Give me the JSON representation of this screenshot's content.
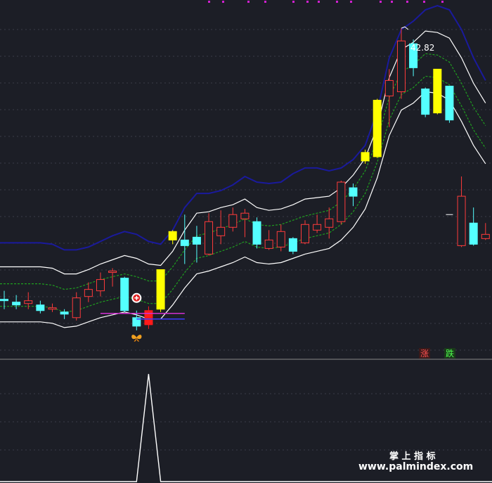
{
  "chart_data": [
    {
      "type": "candlestick",
      "title": "",
      "ylim": [
        20.0,
        44.5
      ],
      "grid": true,
      "max_label": "42.82",
      "badges": {
        "up": "涨",
        "down": "跌"
      },
      "candles": [
        {
          "o": 23.7,
          "c": 23.7,
          "h": 24.3,
          "l": 23.0,
          "color": "cyan"
        },
        {
          "o": 23.5,
          "c": 23.3,
          "h": 24.0,
          "l": 23.0,
          "color": "cyan"
        },
        {
          "o": 23.4,
          "c": 23.6,
          "h": 24.2,
          "l": 23.0,
          "color": "red"
        },
        {
          "o": 23.3,
          "c": 22.9,
          "h": 23.6,
          "l": 22.7,
          "color": "cyan"
        },
        {
          "o": 23.0,
          "c": 23.1,
          "h": 23.4,
          "l": 22.8,
          "color": "red"
        },
        {
          "o": 22.8,
          "c": 22.65,
          "h": 23.0,
          "l": 22.3,
          "color": "cyan"
        },
        {
          "o": 22.4,
          "c": 23.8,
          "h": 24.2,
          "l": 22.2,
          "color": "red"
        },
        {
          "o": 23.9,
          "c": 24.4,
          "h": 24.9,
          "l": 23.5,
          "color": "red"
        },
        {
          "o": 24.3,
          "c": 25.1,
          "h": 25.6,
          "l": 23.9,
          "color": "red"
        },
        {
          "o": 25.7,
          "c": 25.6,
          "h": 25.9,
          "l": 24.6,
          "color": "red"
        },
        {
          "o": 25.2,
          "c": 22.9,
          "h": 25.3,
          "l": 22.8,
          "color": "cyan"
        },
        {
          "o": 22.4,
          "c": 21.8,
          "h": 22.9,
          "l": 21.5,
          "color": "cyan"
        },
        {
          "o": 21.9,
          "c": 22.9,
          "h": 23.2,
          "l": 21.6,
          "color": "red_filled"
        },
        {
          "o": 23.0,
          "c": 25.8,
          "h": 25.8,
          "l": 22.8,
          "color": "yellow"
        },
        {
          "o": 27.9,
          "c": 28.5,
          "h": 28.6,
          "l": 27.6,
          "color": "yellow"
        },
        {
          "o": 27.9,
          "c": 27.5,
          "h": 29.7,
          "l": 26.2,
          "color": "cyan"
        },
        {
          "o": 27.6,
          "c": 28.1,
          "h": 28.9,
          "l": 26.3,
          "color": "cyan"
        },
        {
          "o": 26.9,
          "c": 29.2,
          "h": 29.8,
          "l": 26.8,
          "color": "red"
        },
        {
          "o": 28.2,
          "c": 28.8,
          "h": 30.0,
          "l": 27.6,
          "color": "red"
        },
        {
          "o": 28.8,
          "c": 29.7,
          "h": 30.2,
          "l": 28.5,
          "color": "red"
        },
        {
          "o": 29.4,
          "c": 29.8,
          "h": 30.1,
          "l": 28.1,
          "color": "red"
        },
        {
          "o": 29.2,
          "c": 27.6,
          "h": 29.5,
          "l": 27.3,
          "color": "cyan"
        },
        {
          "o": 27.3,
          "c": 27.9,
          "h": 28.6,
          "l": 27.2,
          "color": "red"
        },
        {
          "o": 27.4,
          "c": 28.5,
          "h": 29.0,
          "l": 27.1,
          "color": "red"
        },
        {
          "o": 28.0,
          "c": 27.1,
          "h": 28.1,
          "l": 26.9,
          "color": "cyan"
        },
        {
          "o": 27.7,
          "c": 29.0,
          "h": 29.3,
          "l": 27.6,
          "color": "red"
        },
        {
          "o": 28.6,
          "c": 29.0,
          "h": 29.7,
          "l": 28.4,
          "color": "red"
        },
        {
          "o": 28.8,
          "c": 29.4,
          "h": 30.2,
          "l": 28.0,
          "color": "red"
        },
        {
          "o": 29.2,
          "c": 32.0,
          "h": 32.1,
          "l": 29.0,
          "color": "red"
        },
        {
          "o": 31.0,
          "c": 31.6,
          "h": 31.9,
          "l": 30.3,
          "color": "cyan"
        },
        {
          "o": 33.5,
          "c": 34.1,
          "h": 34.3,
          "l": 33.3,
          "color": "yellow"
        },
        {
          "o": 33.8,
          "c": 37.8,
          "h": 37.9,
          "l": 33.7,
          "color": "yellow"
        },
        {
          "o": 38.1,
          "c": 39.2,
          "h": 40.0,
          "l": 35.9,
          "color": "red"
        },
        {
          "o": 38.4,
          "c": 42.0,
          "h": 42.9,
          "l": 37.9,
          "color": "red"
        },
        {
          "o": 41.8,
          "c": 40.1,
          "h": 42.1,
          "l": 39.5,
          "color": "cyan"
        },
        {
          "o": 38.6,
          "c": 36.8,
          "h": 38.7,
          "l": 36.6,
          "color": "cyan"
        },
        {
          "o": 36.9,
          "c": 40.0,
          "h": 40.0,
          "l": 36.8,
          "color": "yellow"
        },
        {
          "o": 38.8,
          "c": 36.4,
          "h": 38.8,
          "l": 36.2,
          "color": "cyan"
        },
        {
          "o": 31.0,
          "c": 27.5,
          "h": 32.4,
          "l": 27.4,
          "color": "red"
        },
        {
          "o": 27.6,
          "c": 29.1,
          "h": 30.2,
          "l": 27.5,
          "color": "cyan"
        },
        {
          "o": 28.3,
          "c": 28.0,
          "h": 29.1,
          "l": 27.9,
          "color": "red"
        }
      ],
      "series": [
        {
          "key": "outer_upper",
          "color": "#1a1a9c",
          "values": [
            27.7,
            27.7,
            27.7,
            27.7,
            27.6,
            27.2,
            27.2,
            27.4,
            27.8,
            28.2,
            28.5,
            28.3,
            27.8,
            27.6,
            28.6,
            30.2,
            31.2,
            31.2,
            31.4,
            31.8,
            32.4,
            32.0,
            31.9,
            32.0,
            32.6,
            33.0,
            33.0,
            32.8,
            33.0,
            33.6,
            34.6,
            37.0,
            40.8,
            42.8,
            43.4,
            44.2,
            44.5,
            44.2,
            42.8,
            40.8,
            39.2
          ]
        },
        {
          "key": "upper",
          "color": "#ffffff",
          "values": [
            26.0,
            26.0,
            26.0,
            26.0,
            25.9,
            25.5,
            25.5,
            25.8,
            26.2,
            26.5,
            26.8,
            26.6,
            26.2,
            26.1,
            27.1,
            28.6,
            29.8,
            29.9,
            30.2,
            30.4,
            30.8,
            30.2,
            30.0,
            30.1,
            30.4,
            30.8,
            30.9,
            31.0,
            31.6,
            32.5,
            33.7,
            35.9,
            39.4,
            41.4,
            41.9,
            42.7,
            42.6,
            42.2,
            40.8,
            39.0,
            37.6
          ]
        },
        {
          "key": "mid_upper",
          "color": "#1f9e1f",
          "dashed": true,
          "values": [
            24.8,
            24.8,
            24.8,
            24.8,
            24.7,
            24.4,
            24.5,
            24.8,
            25.1,
            25.3,
            25.5,
            25.3,
            25.0,
            25.0,
            26.0,
            27.2,
            28.2,
            28.4,
            28.7,
            29.0,
            29.4,
            29.0,
            28.9,
            29.0,
            29.3,
            29.6,
            29.8,
            30.0,
            30.6,
            31.5,
            32.8,
            35.0,
            38.0,
            39.8,
            40.3,
            41.1,
            41.0,
            40.5,
            39.0,
            37.3,
            36.0
          ]
        },
        {
          "key": "mid_lower",
          "color": "#1f9e1f",
          "dashed": true,
          "values": [
            23.2,
            23.2,
            23.2,
            23.2,
            23.1,
            22.8,
            22.9,
            23.2,
            23.5,
            23.7,
            23.9,
            23.7,
            23.4,
            23.4,
            24.4,
            25.6,
            26.6,
            26.8,
            27.1,
            27.4,
            27.8,
            27.4,
            27.3,
            27.4,
            27.7,
            28.0,
            28.2,
            28.4,
            29.0,
            29.9,
            31.2,
            33.4,
            36.4,
            38.2,
            38.7,
            39.5,
            39.4,
            38.9,
            37.4,
            35.7,
            34.4
          ]
        },
        {
          "key": "lower",
          "color": "#ffffff",
          "values": [
            22.1,
            22.1,
            22.1,
            22.1,
            22.0,
            21.7,
            21.8,
            22.1,
            22.4,
            22.6,
            22.8,
            22.6,
            22.3,
            22.3,
            23.3,
            24.5,
            25.5,
            25.7,
            26.0,
            26.3,
            26.7,
            26.3,
            26.2,
            26.3,
            26.6,
            26.9,
            27.1,
            27.3,
            27.9,
            28.8,
            30.1,
            32.3,
            35.3,
            37.1,
            37.6,
            38.4,
            38.3,
            37.8,
            36.3,
            34.6,
            33.3
          ]
        }
      ],
      "markers": {
        "plus_index": 11,
        "butterfly_index": 11,
        "magenta_line": {
          "from_index": 8,
          "to_index": 15,
          "y": 22.7
        },
        "support_line": {
          "from_index": 11,
          "to_index": 15,
          "y": 22.3
        },
        "dash_mark": {
          "index": 37,
          "y": 29.7
        }
      }
    },
    {
      "type": "line",
      "ylim": [
        0,
        1
      ],
      "values": [
        0,
        0,
        0,
        0,
        0,
        0,
        0,
        0,
        0,
        0,
        0,
        0,
        1,
        0,
        0,
        0,
        0,
        0,
        0,
        0,
        0,
        0,
        0,
        0,
        0,
        0,
        0,
        0,
        0,
        0,
        0,
        0,
        0,
        0,
        0,
        0,
        0,
        0,
        0,
        0,
        0
      ],
      "color": "#ffffff"
    }
  ],
  "watermark": {
    "line1": "掌 上 指 标",
    "line2": "www.palmindex.com"
  }
}
